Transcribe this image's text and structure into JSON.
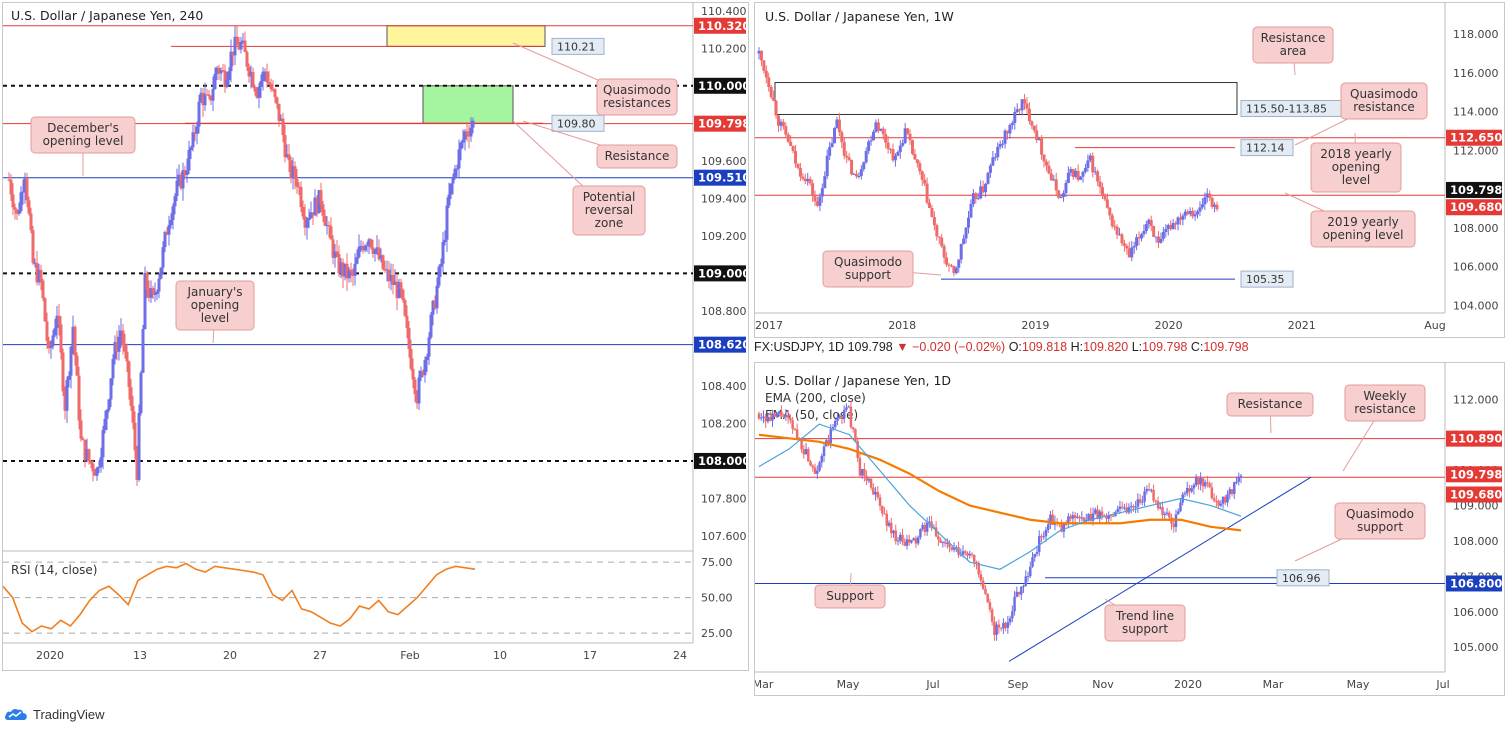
{
  "colors": {
    "bull": "#6e6ee6",
    "bear": "#ef6b6b",
    "red_level": "#e53935",
    "blue_level": "#1a3fbf",
    "ema200": "#f57c00",
    "ema50": "#4aa3df",
    "rsi": "#f07f1f",
    "callout_bg": "#f7cfcf",
    "callout_border": "#e59b9b",
    "yellow_zone": "#fff59d",
    "green_zone": "#a5f5a0"
  },
  "branding": {
    "name": "TradingView",
    "logo_icon": "tradingview-cloud-icon"
  },
  "chart_data": [
    {
      "id": "h4",
      "type": "candlestick",
      "title": "U.S. Dollar / Japanese Yen, 240",
      "x_ticks": [
        "2020",
        "13",
        "20",
        "27",
        "Feb",
        "10",
        "17",
        "24"
      ],
      "y_ticks": [
        "110.400",
        "110.200",
        "110.000",
        "109.800",
        "109.600",
        "109.400",
        "109.200",
        "109.000",
        "108.800",
        "108.600",
        "108.400",
        "108.200",
        "108.000",
        "107.800",
        "107.600"
      ],
      "ylim": [
        107.52,
        110.42
      ],
      "close_path": [
        109.5,
        109.3,
        109.55,
        109.05,
        108.95,
        108.55,
        108.8,
        108.3,
        108.72,
        108.1,
        108.0,
        107.95,
        108.2,
        108.55,
        108.7,
        108.4,
        107.95,
        108.95,
        108.85,
        109.05,
        109.3,
        109.45,
        109.55,
        109.7,
        109.95,
        109.9,
        110.1,
        110.05,
        110.2,
        110.22,
        110.1,
        109.98,
        110.08,
        109.95,
        109.8,
        109.55,
        109.5,
        109.3,
        109.35,
        109.4,
        109.2,
        109.05,
        109.0,
        108.98,
        109.15,
        109.2,
        109.1,
        109.0,
        108.95,
        108.88,
        108.6,
        108.35,
        108.55,
        108.8,
        109.05,
        109.4,
        109.6,
        109.75,
        109.8
      ],
      "levels": [
        {
          "value": 110.32,
          "label": "110.320",
          "kind": "red",
          "style": "solid"
        },
        {
          "value": 110.0,
          "label": "110.000",
          "kind": "black",
          "style": "dashed"
        },
        {
          "value": 109.798,
          "label": "109.798",
          "kind": "red",
          "style": "solid"
        },
        {
          "value": 109.51,
          "label": "109.510",
          "kind": "blue",
          "style": "solid"
        },
        {
          "value": 109.0,
          "label": "109.000",
          "kind": "black",
          "style": "dashed"
        },
        {
          "value": 108.62,
          "label": "108.620",
          "kind": "blue",
          "style": "solid"
        },
        {
          "value": 108.0,
          "label": "108.000",
          "kind": "black",
          "style": "dashed"
        }
      ],
      "zones": [
        {
          "name": "quasimodo-resistance-zone",
          "color": "yellow",
          "y1": 110.21,
          "y2": 110.32
        },
        {
          "name": "potential-reversal-zone",
          "color": "green",
          "y1": 109.8,
          "y2": 110.0
        }
      ],
      "line_tags": [
        {
          "value": 110.21,
          "label": "110.21"
        },
        {
          "value": 109.8,
          "label": "109.80"
        }
      ],
      "annotations": [
        {
          "name": "quasimodo-resistances-callout",
          "text": "Quasimodo\nresistances"
        },
        {
          "name": "resistance-callout",
          "text": "Resistance"
        },
        {
          "name": "potential-reversal-zone-callout",
          "text": "Potential\nreversal\nzone"
        },
        {
          "name": "december-opening-level-callout",
          "text": "December's\nopening level"
        },
        {
          "name": "january-opening-level-callout",
          "text": "January's\nopening\nlevel"
        }
      ]
    },
    {
      "id": "rsi",
      "type": "line",
      "series": [
        {
          "name": "RSI (14, close)",
          "values": [
            58,
            50,
            32,
            26,
            30,
            28,
            34,
            30,
            38,
            48,
            55,
            58,
            52,
            45,
            62,
            66,
            70,
            72,
            71,
            74,
            70,
            68,
            72,
            71,
            70,
            69,
            68,
            66,
            52,
            48,
            55,
            42,
            40,
            36,
            32,
            30,
            35,
            44,
            42,
            48,
            40,
            38,
            44,
            50,
            58,
            66,
            70,
            72,
            71,
            70
          ]
        }
      ],
      "levels": [
        75,
        50,
        25
      ],
      "y_ticks": [
        "75.00",
        "50.00",
        "25.00"
      ],
      "ylim": [
        18,
        80
      ]
    },
    {
      "id": "weekly",
      "type": "candlestick",
      "title": "U.S. Dollar / Japanese Yen, 1W",
      "x_ticks": [
        "2017",
        "2018",
        "2019",
        "2020",
        "2021",
        "Aug"
      ],
      "y_ticks": [
        "118.000",
        "116.000",
        "114.000",
        "112.000",
        "110.000",
        "108.000",
        "106.000",
        "104.000"
      ],
      "ylim": [
        103.6,
        119.4
      ],
      "close_path": [
        117.0,
        115.5,
        113.5,
        112.5,
        111.0,
        110.5,
        109.0,
        111.5,
        113.5,
        111.5,
        110.5,
        112.0,
        113.5,
        112.5,
        111.5,
        113.0,
        111.5,
        110.0,
        108.0,
        106.5,
        105.5,
        107.5,
        109.5,
        110.0,
        111.5,
        112.5,
        113.5,
        114.5,
        113.5,
        112.0,
        110.5,
        109.5,
        111.0,
        110.5,
        111.5,
        110.0,
        108.5,
        107.5,
        106.5,
        107.5,
        108.5,
        107.0,
        108.0,
        108.5,
        109.0,
        108.7,
        109.8,
        108.8
      ],
      "levels": [
        {
          "value": 112.65,
          "label": "112.650",
          "kind": "red"
        },
        {
          "value": 109.68,
          "label": "109.680",
          "kind": "red"
        }
      ],
      "price_tags": [
        {
          "value": 109.798,
          "label": "109.798",
          "kind": "black"
        },
        {
          "value": 109.68,
          "label": "109.680",
          "kind": "red"
        }
      ],
      "resistance_area": {
        "label": "115.50-113.85",
        "y1": 113.85,
        "y2": 115.5
      },
      "line_tags": [
        {
          "value": 112.14,
          "label": "112.14",
          "kind": "red"
        },
        {
          "value": 105.35,
          "label": "105.35",
          "kind": "blue"
        }
      ],
      "annotations": [
        {
          "name": "resistance-area-callout",
          "text": "Resistance\narea"
        },
        {
          "name": "quasimodo-resistance-callout",
          "text": "Quasimodo\nresistance"
        },
        {
          "name": "yearly-opening-2018-callout",
          "text": "2018 yearly\nopening\nlevel"
        },
        {
          "name": "yearly-opening-2019-callout",
          "text": "2019 yearly\nopening level"
        },
        {
          "name": "quasimodo-support-callout",
          "text": "Quasimodo\nsupport"
        }
      ]
    },
    {
      "id": "daily",
      "type": "candlestick",
      "title": "U.S. Dollar / Japanese Yen, 1D",
      "legend": [
        "EMA (200, close)",
        "EMA (50, close)"
      ],
      "symbol_header": {
        "symbol": "FX:USDJPY, 1D",
        "last": "109.798",
        "change": "▼ −0.020 (−0.02%)",
        "open_label": "O:",
        "open": "109.818",
        "high_label": "H:",
        "high": "109.820",
        "low_label": "L:",
        "low": "109.798",
        "close_label": "C:",
        "close": "109.798"
      },
      "x_ticks": [
        "Mar",
        "May",
        "Jul",
        "Sep",
        "Nov",
        "2020",
        "Mar",
        "May",
        "Jul"
      ],
      "y_ticks": [
        "112.000",
        "111.000",
        "110.000",
        "109.000",
        "108.000",
        "107.000",
        "106.000",
        "105.000"
      ],
      "ylim": [
        104.3,
        112.8
      ],
      "close_path": [
        111.6,
        111.4,
        111.6,
        111.2,
        110.6,
        110.0,
        110.7,
        111.5,
        111.7,
        110.0,
        109.6,
        108.8,
        108.2,
        107.9,
        108.0,
        108.5,
        108.1,
        107.8,
        107.6,
        107.7,
        106.6,
        105.5,
        105.6,
        106.5,
        107.1,
        108.0,
        108.6,
        108.3,
        108.8,
        108.5,
        108.8,
        108.6,
        109.0,
        108.9,
        109.2,
        109.4,
        108.8,
        108.5,
        109.4,
        109.7,
        109.5,
        109.0,
        109.4,
        109.8
      ],
      "ema200": [
        111.0,
        110.9,
        110.8,
        110.6,
        110.3,
        109.9,
        109.4,
        109.0,
        108.8,
        108.6,
        108.5,
        108.5,
        108.5,
        108.6,
        108.6,
        108.4,
        108.3
      ],
      "ema50": [
        110.1,
        110.6,
        111.3,
        111.0,
        110.0,
        109.0,
        108.2,
        107.4,
        107.2,
        107.7,
        108.3,
        108.6,
        108.8,
        109.0,
        109.2,
        109.0,
        108.7
      ],
      "levels": [
        {
          "value": 110.89,
          "label": "110.890",
          "kind": "red"
        },
        {
          "value": 109.798,
          "label": "109.798",
          "kind": "red"
        },
        {
          "value": 106.8,
          "label": "106.800",
          "kind": "blue"
        }
      ],
      "price_tags": [
        {
          "value": 110.89,
          "label": "110.890",
          "kind": "red"
        },
        {
          "value": 109.798,
          "label": "109.798",
          "kind": "red"
        },
        {
          "value": 109.68,
          "label": "109.680",
          "kind": "red"
        },
        {
          "value": 106.8,
          "label": "106.800",
          "kind": "blue"
        }
      ],
      "line_tags": [
        {
          "value": 106.96,
          "label": "106.96"
        }
      ],
      "annotations": [
        {
          "name": "resistance-callout",
          "text": "Resistance"
        },
        {
          "name": "weekly-resistance-callout",
          "text": "Weekly\nresistance"
        },
        {
          "name": "quasimodo-support-callout",
          "text": "Quasimodo\nsupport"
        },
        {
          "name": "support-callout",
          "text": "Support"
        },
        {
          "name": "trend-line-support-callout",
          "text": "Trend line\nsupport"
        }
      ]
    }
  ]
}
